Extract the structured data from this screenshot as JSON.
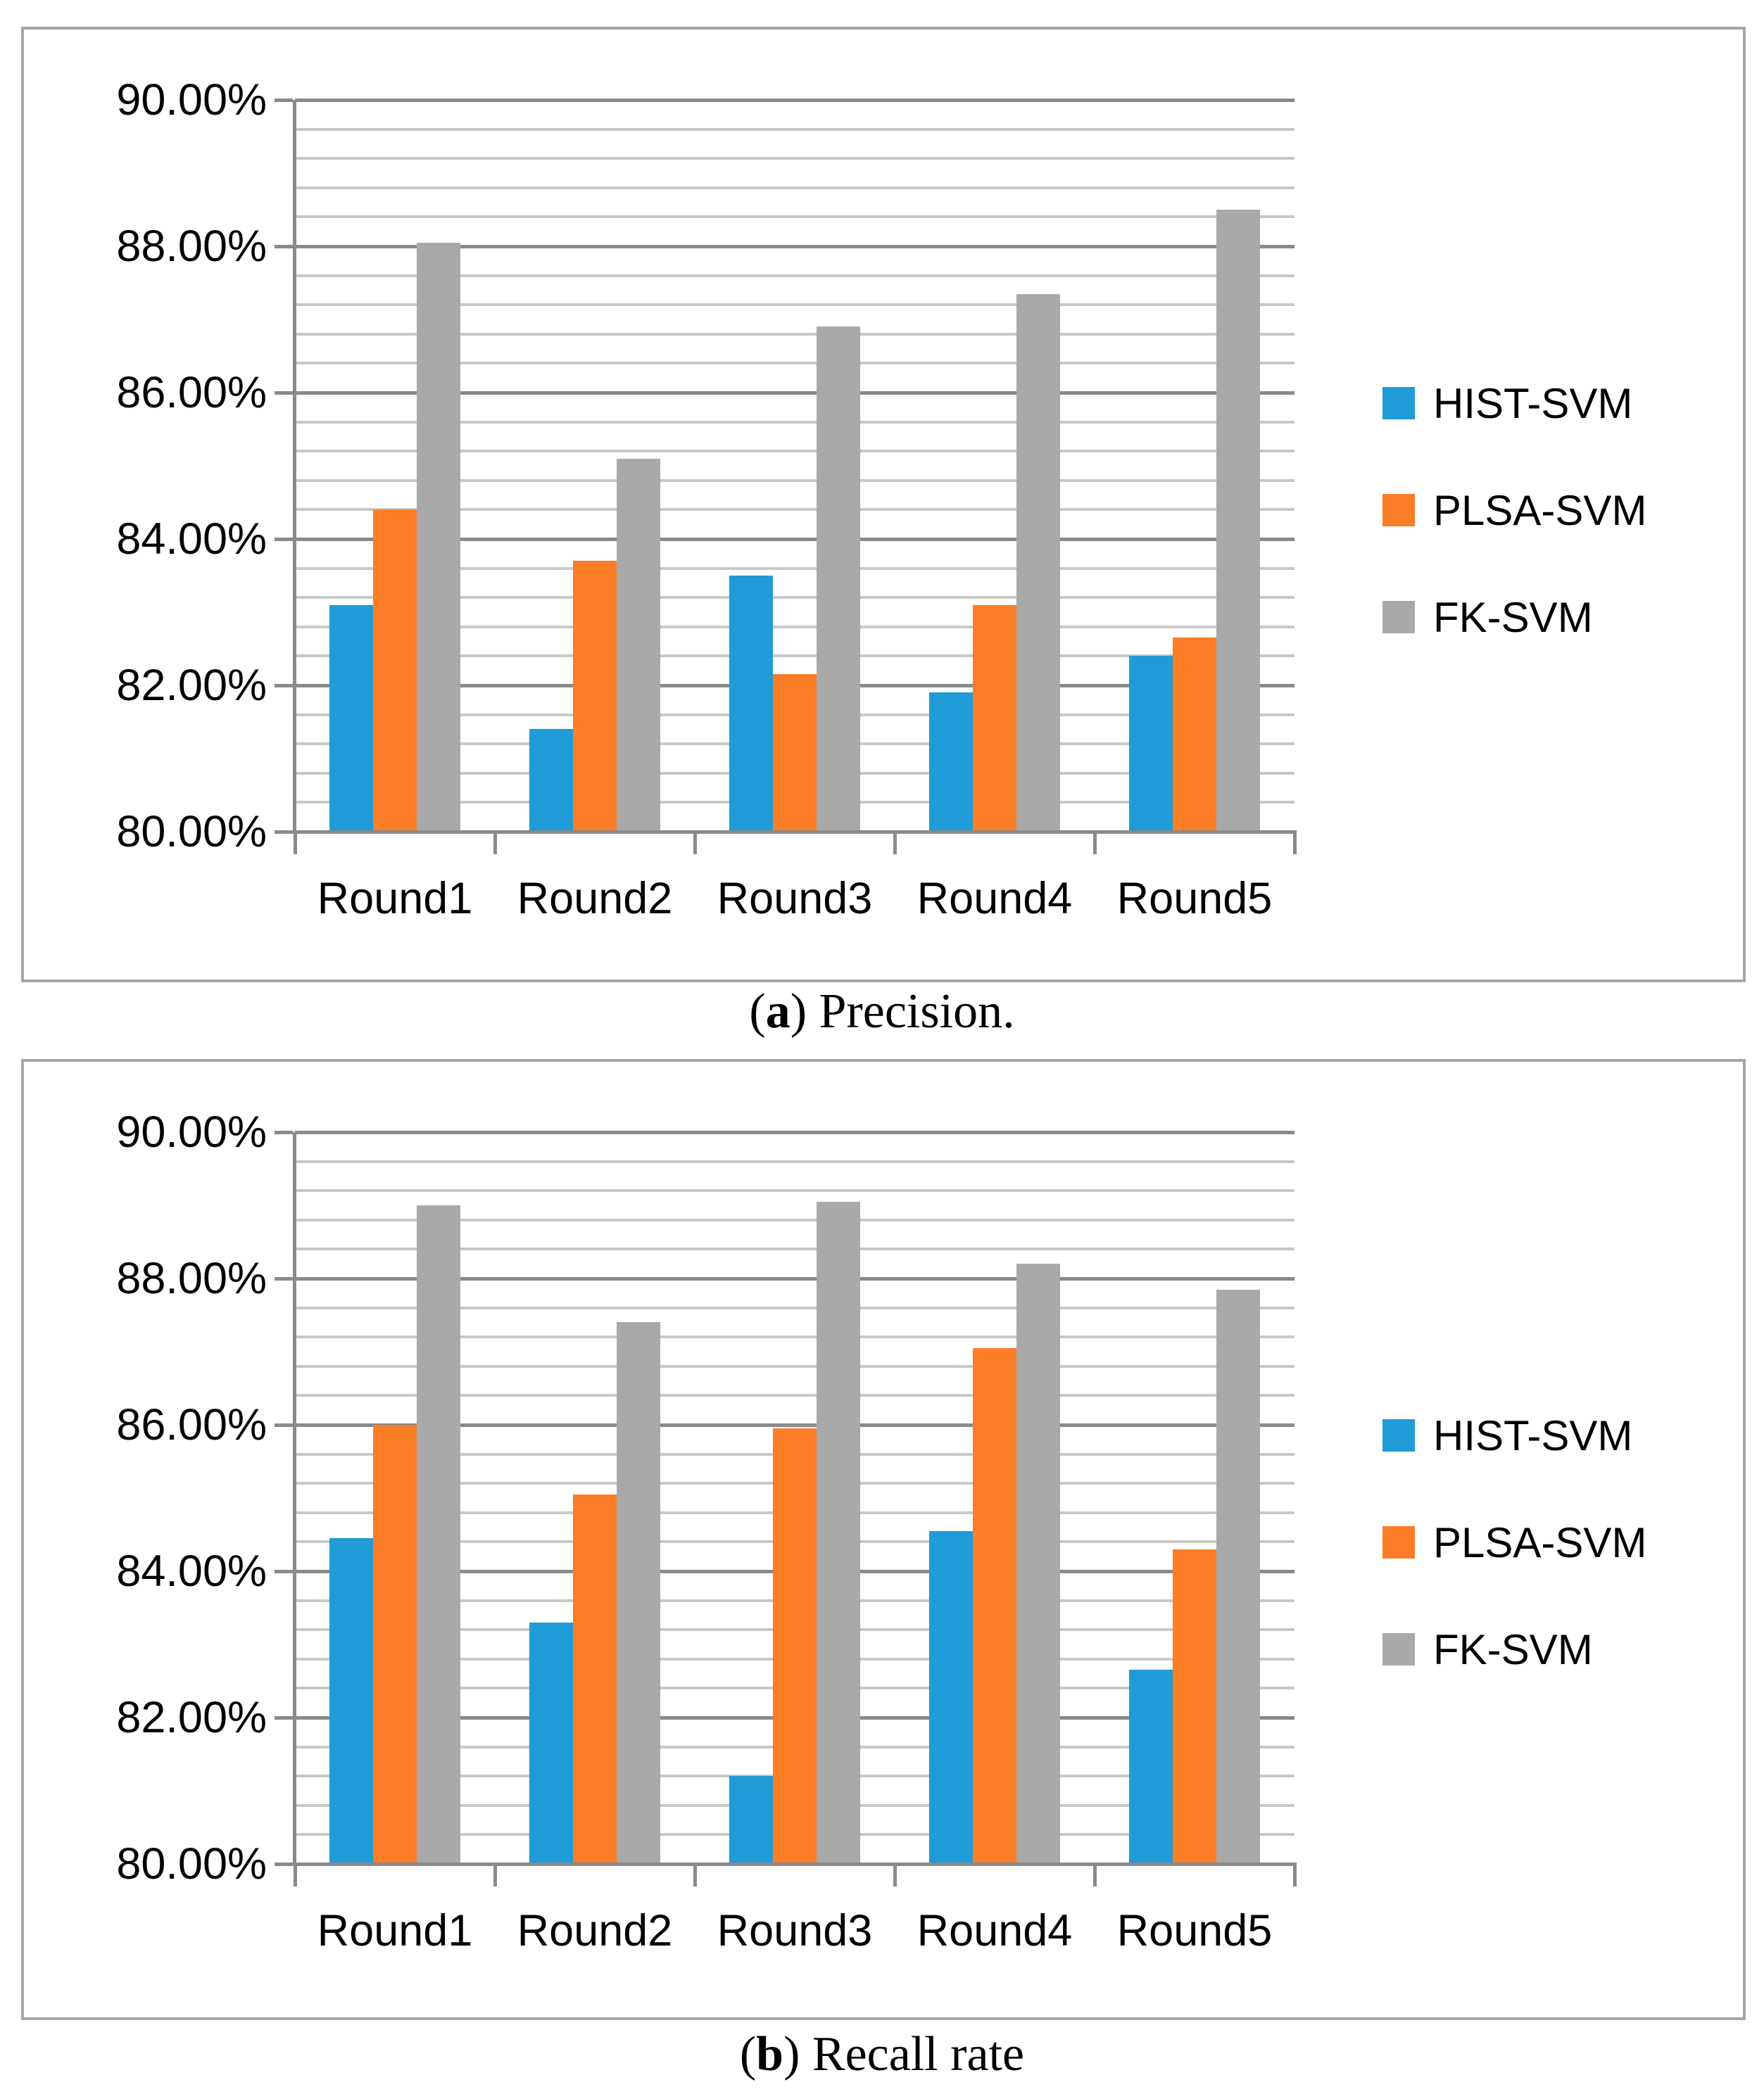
{
  "figure": {
    "captions": {
      "a": {
        "open": "(",
        "letter": "a",
        "rest": ") Precision."
      },
      "b": {
        "open": "(",
        "letter": "b",
        "rest": ") Recall rate"
      }
    }
  },
  "palette": {
    "hist_svm_blue": "#1f9bd7",
    "plsa_svm_orange": "#fb7d25",
    "fk_svm_gray": "#a9a9a9",
    "major_gridline": "#8a8a8a",
    "minor_gridline": "#c8c8c8",
    "axis_line": "#8a8a8a",
    "panel_border": "#a6a6a6",
    "text": "#000000"
  },
  "chart_data": [
    {
      "type": "bar",
      "panel": "a",
      "title": "(a) Precision.",
      "xlabel": "",
      "ylabel": "",
      "categories": [
        "Round1",
        "Round2",
        "Round3",
        "Round4",
        "Round5"
      ],
      "series": [
        {
          "name": "HIST-SVM",
          "color": "#1f9bd7",
          "values": [
            83.1,
            81.4,
            83.5,
            81.9,
            82.4
          ]
        },
        {
          "name": "PLSA-SVM",
          "color": "#fb7d25",
          "values": [
            84.4,
            83.7,
            82.15,
            83.1,
            82.65
          ]
        },
        {
          "name": "FK-SVM",
          "color": "#a9a9a9",
          "values": [
            88.05,
            85.1,
            86.9,
            87.35,
            88.5
          ]
        }
      ],
      "ylim": [
        80,
        90
      ],
      "y_major_step": 2,
      "y_minor_step": 0.4,
      "y_tick_labels": [
        "80.00%",
        "82.00%",
        "84.00%",
        "86.00%",
        "88.00%",
        "90.00%"
      ],
      "grid": true,
      "legend_position": "right"
    },
    {
      "type": "bar",
      "panel": "b",
      "title": "(b) Recall rate",
      "xlabel": "",
      "ylabel": "",
      "categories": [
        "Round1",
        "Round2",
        "Round3",
        "Round4",
        "Round5"
      ],
      "series": [
        {
          "name": "HIST-SVM",
          "color": "#1f9bd7",
          "values": [
            84.45,
            83.3,
            81.2,
            84.55,
            82.65
          ]
        },
        {
          "name": "PLSA-SVM",
          "color": "#fb7d25",
          "values": [
            86.0,
            85.05,
            85.95,
            87.05,
            84.3
          ]
        },
        {
          "name": "FK-SVM",
          "color": "#a9a9a9",
          "values": [
            89.0,
            87.4,
            89.05,
            88.2,
            87.85
          ]
        }
      ],
      "ylim": [
        80,
        90
      ],
      "y_major_step": 2,
      "y_minor_step": 0.4,
      "y_tick_labels": [
        "80.00%",
        "82.00%",
        "84.00%",
        "86.00%",
        "88.00%",
        "90.00%"
      ],
      "grid": true,
      "legend_position": "right"
    }
  ]
}
